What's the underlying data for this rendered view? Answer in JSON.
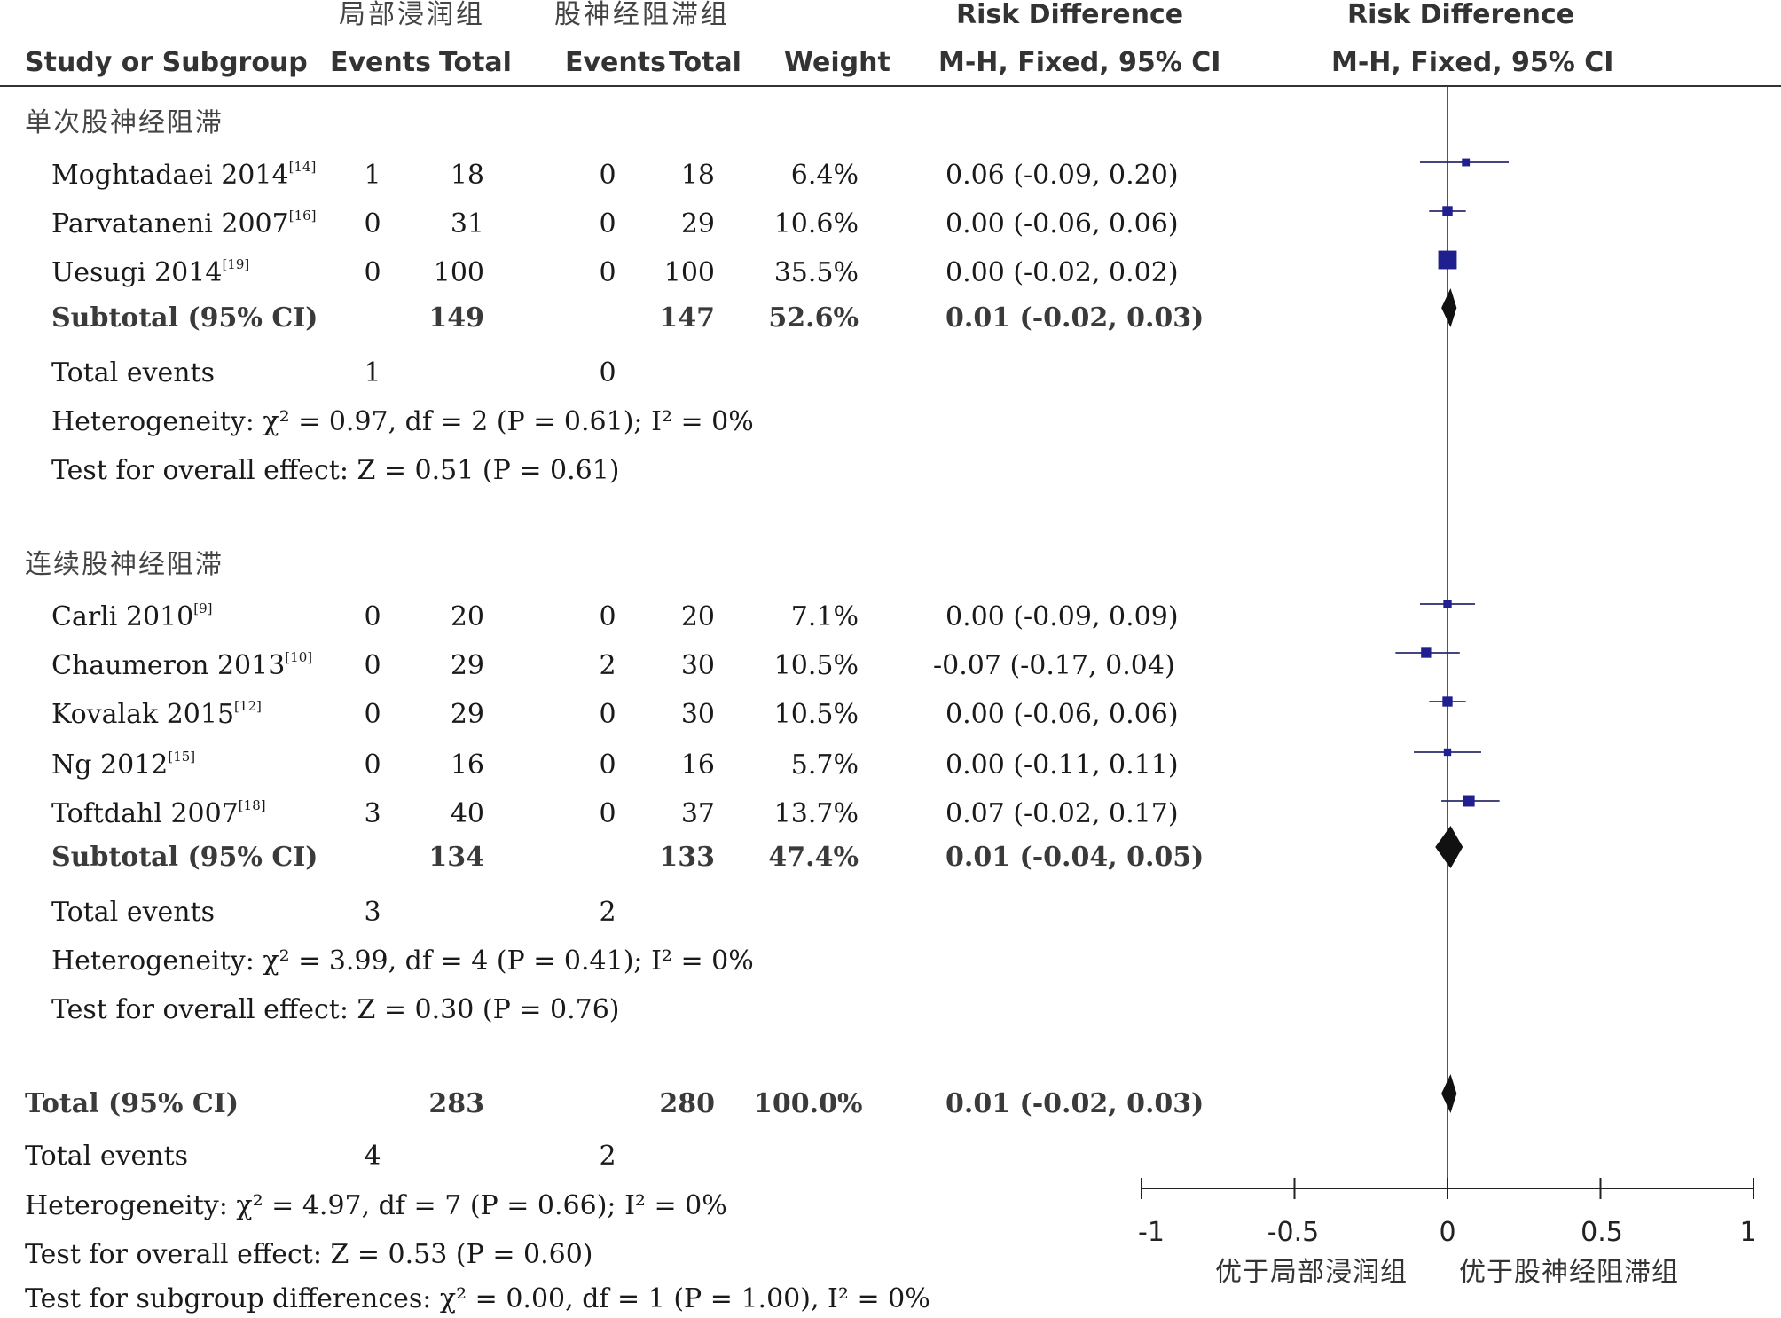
{
  "header": {
    "group1": "局部浸润组",
    "group2": "股神经阻滞组",
    "rd_title": "Risk Difference",
    "rd_title_plot": "Risk Difference",
    "col_study": "Study or Subgroup",
    "col_events1": "Events",
    "col_total1": "Total",
    "col_events2": "Events",
    "col_total2": "Total",
    "col_weight": "Weight",
    "col_method": "M-H, Fixed, 95% CI",
    "col_method_plot": "M-H, Fixed, 95% CI"
  },
  "subgroups": [
    {
      "title": "单次股神经阻滞",
      "studies": [
        {
          "name": "Moghtadaei 2014",
          "ref": "[14]",
          "e1": "1",
          "t1": "18",
          "e2": "0",
          "t2": "18",
          "weight": "6.4%",
          "ci": "0.06 (-0.09, 0.20)"
        },
        {
          "name": "Parvataneni 2007",
          "ref": "[16]",
          "e1": "0",
          "t1": "31",
          "e2": "0",
          "t2": "29",
          "weight": "10.6%",
          "ci": "0.00 (-0.06, 0.06)"
        },
        {
          "name": "Uesugi 2014",
          "ref": "[19]",
          "e1": "0",
          "t1": "100",
          "e2": "0",
          "t2": "100",
          "weight": "35.5%",
          "ci": "0.00 (-0.02, 0.02)"
        }
      ],
      "subtotal": {
        "label": "Subtotal (95% CI)",
        "t1": "149",
        "t2": "147",
        "weight": "52.6%",
        "ci": "0.01 (-0.02, 0.03)"
      },
      "total_events": {
        "label": "Total events",
        "e1": "1",
        "e2": "0"
      },
      "heterogeneity": "Heterogeneity: χ² = 0.97, df = 2 (P = 0.61); I² = 0%",
      "overall": "Test for overall effect: Z = 0.51 (P = 0.61)"
    },
    {
      "title": "连续股神经阻滞",
      "studies": [
        {
          "name": "Carli 2010",
          "ref": "[9]",
          "e1": "0",
          "t1": "20",
          "e2": "0",
          "t2": "20",
          "weight": "7.1%",
          "ci": "0.00 (-0.09, 0.09)"
        },
        {
          "name": "Chaumeron 2013",
          "ref": "[10]",
          "e1": "0",
          "t1": "29",
          "e2": "2",
          "t2": "30",
          "weight": "10.5%",
          "ci": "-0.07 (-0.17, 0.04)"
        },
        {
          "name": "Kovalak 2015",
          "ref": "[12]",
          "e1": "0",
          "t1": "29",
          "e2": "0",
          "t2": "30",
          "weight": "10.5%",
          "ci": "0.00 (-0.06, 0.06)"
        },
        {
          "name": "Ng 2012",
          "ref": "[15]",
          "e1": "0",
          "t1": "16",
          "e2": "0",
          "t2": "16",
          "weight": "5.7%",
          "ci": "0.00 (-0.11, 0.11)"
        },
        {
          "name": "Toftdahl 2007",
          "ref": "[18]",
          "e1": "3",
          "t1": "40",
          "e2": "0",
          "t2": "37",
          "weight": "13.7%",
          "ci": "0.07 (-0.02, 0.17)"
        }
      ],
      "subtotal": {
        "label": "Subtotal (95% CI)",
        "t1": "134",
        "t2": "133",
        "weight": "47.4%",
        "ci": "0.01 (-0.04, 0.05)"
      },
      "total_events": {
        "label": "Total events",
        "e1": "3",
        "e2": "2"
      },
      "heterogeneity": "Heterogeneity: χ² = 3.99, df = 4 (P = 0.41); I² = 0%",
      "overall": "Test for overall effect: Z = 0.30 (P = 0.76)"
    }
  ],
  "total": {
    "label": "Total (95% CI)",
    "t1": "283",
    "t2": "280",
    "weight": "100.0%",
    "ci": "0.01 (-0.02, 0.03)",
    "events_label": "Total events",
    "e1": "4",
    "e2": "2",
    "heterogeneity": "Heterogeneity: χ² = 4.97, df = 7 (P = 0.66); I² = 0%",
    "overall": "Test for overall effect: Z = 0.53 (P = 0.60)",
    "subgroup_diff": "Test for subgroup differences: χ² = 0.00, df = 1 (P = 1.00), I² = 0%"
  },
  "axis": {
    "ticks": [
      "-1",
      "-0.5",
      "0",
      "0.5",
      "1"
    ],
    "favours_left": "优于局部浸润组",
    "favours_right": "优于股神经阻滞组"
  },
  "chart_data": {
    "type": "forest",
    "title": "Risk Difference M-H, Fixed, 95% CI",
    "xlim": [
      -1,
      1
    ],
    "x_ticks": [
      -1,
      -0.5,
      0,
      0.5,
      1
    ],
    "studies": [
      {
        "name": "Moghtadaei 2014",
        "rd": 0.06,
        "lo": -0.09,
        "hi": 0.2,
        "weight": 6.4
      },
      {
        "name": "Parvataneni 2007",
        "rd": 0.0,
        "lo": -0.06,
        "hi": 0.06,
        "weight": 10.6
      },
      {
        "name": "Uesugi 2014",
        "rd": 0.0,
        "lo": -0.02,
        "hi": 0.02,
        "weight": 35.5
      },
      {
        "name": "Carli 2010",
        "rd": 0.0,
        "lo": -0.09,
        "hi": 0.09,
        "weight": 7.1
      },
      {
        "name": "Chaumeron 2013",
        "rd": -0.07,
        "lo": -0.17,
        "hi": 0.04,
        "weight": 10.5
      },
      {
        "name": "Kovalak 2015",
        "rd": 0.0,
        "lo": -0.06,
        "hi": 0.06,
        "weight": 10.5
      },
      {
        "name": "Ng 2012",
        "rd": 0.0,
        "lo": -0.11,
        "hi": 0.11,
        "weight": 5.7
      },
      {
        "name": "Toftdahl 2007",
        "rd": 0.07,
        "lo": -0.02,
        "hi": 0.17,
        "weight": 13.7
      }
    ],
    "pooled": [
      {
        "name": "Subtotal 单次股神经阻滞",
        "rd": 0.01,
        "lo": -0.02,
        "hi": 0.03
      },
      {
        "name": "Subtotal 连续股神经阻滞",
        "rd": 0.01,
        "lo": -0.04,
        "hi": 0.05
      },
      {
        "name": "Total",
        "rd": 0.01,
        "lo": -0.02,
        "hi": 0.03
      }
    ]
  }
}
